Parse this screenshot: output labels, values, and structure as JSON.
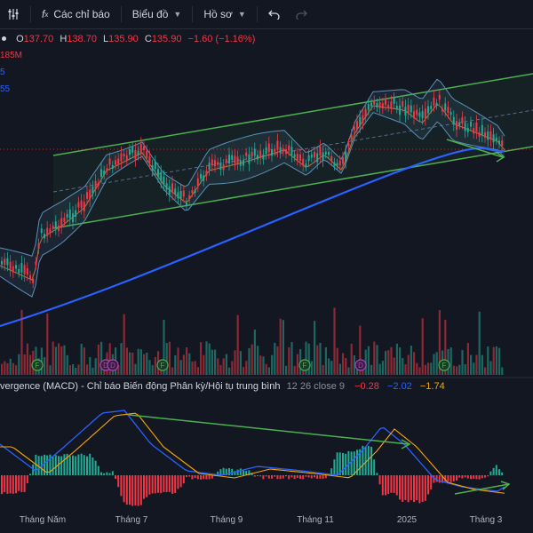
{
  "toolbar": {
    "indicators_label": "Các chỉ báo",
    "chart_type_label": "Biểu đồ",
    "profile_label": "Hồ sơ",
    "icons": [
      "settings-sliders-icon",
      "fx-icon",
      "chevron-down-icon",
      "undo-icon",
      "redo-icon"
    ]
  },
  "legend": {
    "o_key": "O",
    "o_val": "137.70",
    "h_key": "H",
    "h_val": "138.70",
    "l_key": "L",
    "l_val": "135.90",
    "c_key": "C",
    "c_val": "135.90",
    "change": "−1.60 (−1.16%)",
    "volume_stub": "185M",
    "stub_1": "5",
    "stub_2": "55"
  },
  "macd": {
    "title": "vergence (MACD) - Chỉ báo Biến động Phân kỳ/Hội tụ trung bình",
    "params": "12 26 close 9",
    "hist": "−0.28",
    "macd_val": "−2.02",
    "signal_val": "−1.74"
  },
  "chart_data": [
    {
      "type": "line",
      "title": "",
      "x": [
        "Tháng Năm",
        "Tháng 7",
        "Tháng 9",
        "Tháng 11",
        "2025",
        "Tháng 3"
      ],
      "series": [
        {
          "name": "price (approx. close by segment)",
          "values": [
            115,
            130,
            127,
            131,
            140,
            136
          ]
        },
        {
          "name": "long moving average (approx.)",
          "values": [
            100,
            110,
            118,
            124,
            131,
            134
          ]
        }
      ],
      "last": {
        "open": 137.7,
        "high": 138.7,
        "low": 135.9,
        "close": 135.9,
        "change": -1.6,
        "change_pct": -1.16
      },
      "annotations": [
        "upward channel (green)",
        "bollinger bands",
        "bearish divergence arrow"
      ],
      "events": [
        "F",
        "D",
        "F",
        "F",
        "D",
        "F"
      ]
    },
    {
      "type": "bar",
      "title": "",
      "x": [
        "Tháng Năm",
        "Tháng 7",
        "Tháng 9",
        "Tháng 11",
        "2025",
        "Tháng 3"
      ],
      "series": [
        {
          "name": "MACD",
          "values": [
            1.5,
            3.5,
            -0.5,
            -1,
            1.8,
            -2.02
          ]
        },
        {
          "name": "Signal",
          "values": [
            0.5,
            3.0,
            0,
            -0.8,
            1.5,
            -1.74
          ]
        }
      ],
      "hist_last": -0.28
    }
  ],
  "colors": {
    "up": "#22ab94",
    "down": "#f23645",
    "ma": "#2962ff",
    "channel": "#4caf50",
    "bb": "#5b8fb9",
    "bg": "#131722"
  },
  "x_labels": [
    "Tháng Năm",
    "Tháng 7",
    "Tháng 9",
    "Tháng 11",
    "2025",
    "Tháng 3"
  ]
}
